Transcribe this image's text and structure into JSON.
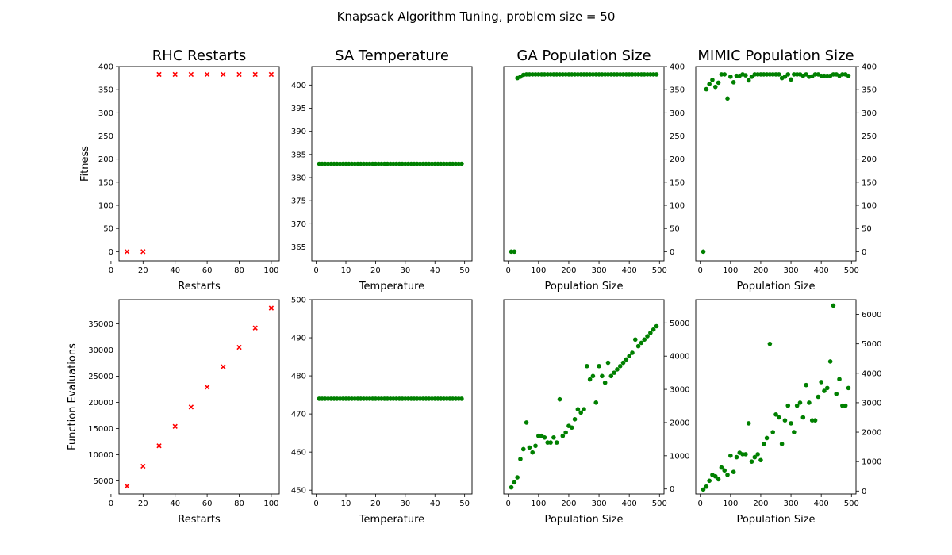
{
  "figure": {
    "suptitle": "Knapsack Algorithm Tuning, problem size = 50"
  },
  "chart_data": [
    {
      "id": "rhc-fitness",
      "type": "scatter",
      "title": "RHC Restarts",
      "xlabel": "Restarts",
      "ylabel": "Fitness",
      "marker": "x",
      "color": "#ff0000",
      "xlim": [
        5,
        105
      ],
      "ylim": [
        -20,
        400
      ],
      "xticks": [
        0,
        20,
        40,
        60,
        80,
        100
      ],
      "yticks": [
        0,
        50,
        100,
        150,
        200,
        250,
        300,
        350,
        400
      ],
      "y_axis_side": "left",
      "x": [
        10,
        20,
        30,
        40,
        50,
        60,
        70,
        80,
        90,
        100
      ],
      "y": [
        0,
        0,
        383,
        383,
        383,
        383,
        383,
        383,
        383,
        383
      ]
    },
    {
      "id": "sa-fitness",
      "type": "scatter",
      "title": "SA Temperature",
      "xlabel": "Temperature",
      "ylabel": "",
      "marker": "o",
      "color": "#008000",
      "xlim": [
        -1.5,
        52.5
      ],
      "ylim": [
        362,
        404
      ],
      "xticks": [
        0,
        10,
        20,
        30,
        40,
        50
      ],
      "yticks": [
        365,
        370,
        375,
        380,
        385,
        390,
        395,
        400
      ],
      "y_axis_side": "left",
      "x_range": [
        1,
        49,
        1
      ],
      "y_constant": 383
    },
    {
      "id": "ga-fitness",
      "type": "scatter",
      "title": "GA Population Size",
      "xlabel": "Population Size",
      "ylabel": "",
      "marker": "o",
      "color": "#008000",
      "xlim": [
        -15,
        515
      ],
      "ylim": [
        -20,
        400
      ],
      "xticks": [
        0,
        100,
        200,
        300,
        400,
        500
      ],
      "yticks": [
        0,
        50,
        100,
        150,
        200,
        250,
        300,
        350,
        400
      ],
      "y_axis_side": "right",
      "x": [
        10,
        20,
        30,
        40,
        50,
        60,
        70,
        80,
        90,
        100,
        110,
        120,
        130,
        140,
        150,
        160,
        170,
        180,
        190,
        200,
        210,
        220,
        230,
        240,
        250,
        260,
        270,
        280,
        290,
        300,
        310,
        320,
        330,
        340,
        350,
        360,
        370,
        380,
        390,
        400,
        410,
        420,
        430,
        440,
        450,
        460,
        470,
        480,
        490
      ],
      "y": [
        0,
        0,
        375,
        378,
        382,
        383,
        383,
        383,
        383,
        383,
        383,
        383,
        383,
        383,
        383,
        383,
        383,
        383,
        383,
        383,
        383,
        383,
        383,
        383,
        383,
        383,
        383,
        383,
        383,
        383,
        383,
        383,
        383,
        383,
        383,
        383,
        383,
        383,
        383,
        383,
        383,
        383,
        383,
        383,
        383,
        383,
        383,
        383,
        383
      ]
    },
    {
      "id": "mimic-fitness",
      "type": "scatter",
      "title": "MIMIC Population Size",
      "xlabel": "Population Size",
      "ylabel": "",
      "marker": "o",
      "color": "#008000",
      "xlim": [
        -15,
        515
      ],
      "ylim": [
        -20,
        400
      ],
      "xticks": [
        0,
        100,
        200,
        300,
        400,
        500
      ],
      "yticks": [
        0,
        50,
        100,
        150,
        200,
        250,
        300,
        350,
        400
      ],
      "y_axis_side": "right",
      "x": [
        10,
        20,
        30,
        40,
        50,
        60,
        70,
        80,
        90,
        100,
        110,
        120,
        130,
        140,
        150,
        160,
        170,
        180,
        190,
        200,
        210,
        220,
        230,
        240,
        250,
        260,
        270,
        280,
        290,
        300,
        310,
        320,
        330,
        340,
        350,
        360,
        370,
        380,
        390,
        400,
        410,
        420,
        430,
        440,
        450,
        460,
        470,
        480,
        490
      ],
      "y": [
        0,
        351,
        362,
        371,
        356,
        365,
        383,
        383,
        331,
        378,
        366,
        380,
        380,
        383,
        381,
        370,
        378,
        383,
        383,
        383,
        383,
        383,
        383,
        383,
        383,
        383,
        375,
        378,
        383,
        372,
        383,
        383,
        383,
        380,
        383,
        378,
        379,
        383,
        383,
        380,
        380,
        380,
        380,
        383,
        383,
        380,
        383,
        383,
        380
      ]
    },
    {
      "id": "rhc-evals",
      "type": "scatter",
      "title": "",
      "xlabel": "Restarts",
      "ylabel": "Function Evaluations",
      "marker": "x",
      "color": "#ff0000",
      "xlim": [
        5,
        105
      ],
      "ylim": [
        2500,
        39600
      ],
      "xticks": [
        0,
        20,
        40,
        60,
        80,
        100
      ],
      "yticks": [
        5000,
        10000,
        15000,
        20000,
        25000,
        30000,
        35000
      ],
      "y_axis_side": "left",
      "x": [
        10,
        20,
        30,
        40,
        50,
        60,
        70,
        80,
        90,
        100
      ],
      "y": [
        4000,
        7800,
        11700,
        15400,
        19100,
        22900,
        26800,
        30500,
        34200,
        38000
      ]
    },
    {
      "id": "sa-evals",
      "type": "scatter",
      "title": "",
      "xlabel": "Temperature",
      "ylabel": "",
      "marker": "o",
      "color": "#008000",
      "xlim": [
        -1.5,
        52.5
      ],
      "ylim": [
        449,
        500
      ],
      "xticks": [
        0,
        10,
        20,
        30,
        40,
        50
      ],
      "yticks": [
        450,
        460,
        470,
        480,
        490,
        500
      ],
      "y_axis_side": "left",
      "x_range": [
        1,
        49,
        1
      ],
      "y_constant": 474
    },
    {
      "id": "ga-evals",
      "type": "scatter",
      "title": "",
      "xlabel": "Population Size",
      "ylabel": "",
      "marker": "o",
      "color": "#008000",
      "xlim": [
        -15,
        515
      ],
      "ylim": [
        -150,
        5700
      ],
      "xticks": [
        0,
        100,
        200,
        300,
        400,
        500
      ],
      "yticks": [
        0,
        1000,
        2000,
        3000,
        4000,
        5000
      ],
      "y_axis_side": "right",
      "x": [
        10,
        20,
        30,
        40,
        50,
        60,
        70,
        80,
        90,
        100,
        110,
        120,
        130,
        140,
        150,
        160,
        170,
        180,
        190,
        200,
        210,
        220,
        230,
        240,
        250,
        260,
        270,
        280,
        290,
        300,
        310,
        320,
        330,
        340,
        350,
        360,
        370,
        380,
        390,
        400,
        410,
        420,
        430,
        440,
        450,
        460,
        470,
        480,
        490
      ],
      "y": [
        50,
        200,
        350,
        900,
        1200,
        2000,
        1250,
        1100,
        1300,
        1600,
        1600,
        1550,
        1400,
        1400,
        1550,
        1400,
        2700,
        1600,
        1700,
        1900,
        1850,
        2100,
        2400,
        2300,
        2400,
        3700,
        3300,
        3400,
        2600,
        3700,
        3400,
        3200,
        3800,
        3400,
        3500,
        3600,
        3700,
        3800,
        3900,
        4000,
        4100,
        4500,
        4300,
        4400,
        4500,
        4600,
        4700,
        4800,
        4900
      ]
    },
    {
      "id": "mimic-evals",
      "type": "scatter",
      "title": "",
      "xlabel": "Population Size",
      "ylabel": "",
      "marker": "o",
      "color": "#008000",
      "xlim": [
        -15,
        515
      ],
      "ylim": [
        -100,
        6500
      ],
      "xticks": [
        0,
        100,
        200,
        300,
        400,
        500
      ],
      "yticks": [
        0,
        1000,
        2000,
        3000,
        4000,
        5000,
        6000
      ],
      "y_axis_side": "right",
      "x": [
        10,
        20,
        30,
        40,
        50,
        60,
        70,
        80,
        90,
        100,
        110,
        120,
        130,
        140,
        150,
        160,
        170,
        180,
        190,
        200,
        210,
        220,
        230,
        240,
        250,
        260,
        270,
        280,
        290,
        300,
        310,
        320,
        330,
        340,
        350,
        360,
        370,
        380,
        390,
        400,
        410,
        420,
        430,
        440,
        450,
        460,
        470,
        480,
        490
      ],
      "y": [
        50,
        150,
        350,
        550,
        500,
        400,
        800,
        700,
        550,
        1200,
        650,
        1150,
        1300,
        1250,
        1250,
        2300,
        1000,
        1150,
        1250,
        1050,
        1600,
        1800,
        5000,
        2000,
        2600,
        2500,
        1600,
        2400,
        2900,
        2300,
        2000,
        2900,
        3000,
        2500,
        3600,
        3000,
        2400,
        2400,
        3200,
        3700,
        3400,
        3500,
        4400,
        6300,
        3300,
        3800,
        2900,
        2900,
        3500
      ]
    }
  ]
}
